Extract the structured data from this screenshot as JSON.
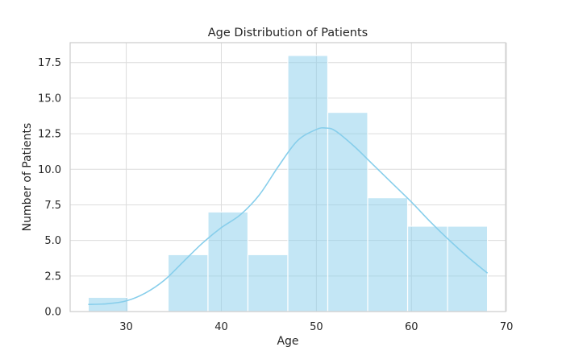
{
  "chart_data": {
    "type": "bar",
    "title": "Age Distribution of Patients",
    "xlabel": "Age",
    "ylabel": "Number of Patients",
    "xlim": [
      24.1,
      69.9
    ],
    "ylim": [
      0,
      18.9
    ],
    "xticks": [
      30,
      40,
      50,
      60,
      70
    ],
    "yticks": [
      0,
      2.5,
      5,
      7.5,
      10,
      12.5,
      15,
      17.5
    ],
    "ytick_labels": [
      "0.0",
      "2.5",
      "5.0",
      "7.5",
      "10.0",
      "12.5",
      "15.0",
      "17.5"
    ],
    "grid": true,
    "bins": [
      {
        "start": 26.0,
        "end": 30.2,
        "count": 1
      },
      {
        "start": 30.2,
        "end": 34.4,
        "count": 0
      },
      {
        "start": 34.4,
        "end": 38.6,
        "count": 4
      },
      {
        "start": 38.6,
        "end": 42.8,
        "count": 7
      },
      {
        "start": 42.8,
        "end": 47.0,
        "count": 4
      },
      {
        "start": 47.0,
        "end": 51.2,
        "count": 18
      },
      {
        "start": 51.2,
        "end": 55.4,
        "count": 14
      },
      {
        "start": 55.4,
        "end": 59.6,
        "count": 8
      },
      {
        "start": 59.6,
        "end": 63.8,
        "count": 6
      },
      {
        "start": 63.8,
        "end": 68.0,
        "count": 6
      }
    ],
    "kde": {
      "x": [
        26,
        28,
        30,
        32,
        34,
        36,
        38,
        40,
        42,
        44,
        46,
        48,
        50,
        51,
        52,
        54,
        56,
        58,
        60,
        62,
        64,
        66,
        68
      ],
      "y": [
        0.5,
        0.55,
        0.75,
        1.3,
        2.2,
        3.5,
        4.8,
        5.9,
        6.8,
        8.2,
        10.2,
        12.0,
        12.8,
        12.9,
        12.7,
        11.6,
        10.3,
        9.0,
        7.7,
        6.3,
        5.0,
        3.8,
        2.7
      ]
    },
    "colors": {
      "bar_fill": "#87ceeb",
      "bar_opacity": 0.5,
      "kde_line": "#87ceeb",
      "grid": "#dcdcdc",
      "frame": "#cccccc"
    }
  }
}
